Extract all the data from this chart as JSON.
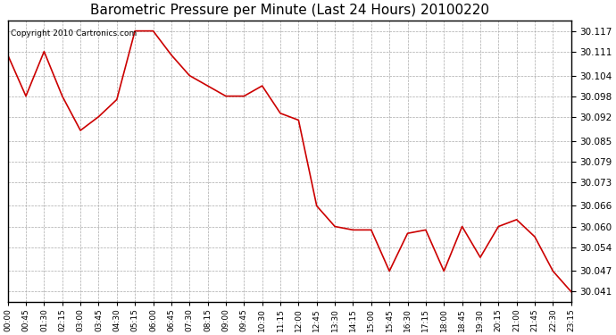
{
  "title": "Barometric Pressure per Minute (Last 24 Hours) 20100220",
  "copyright": "Copyright 2010 Cartronics.com",
  "line_color": "#cc0000",
  "bg_color": "#ffffff",
  "plot_bg_color": "#ffffff",
  "grid_color": "#aaaaaa",
  "yticks": [
    30.041,
    30.047,
    30.054,
    30.06,
    30.066,
    30.073,
    30.079,
    30.085,
    30.092,
    30.098,
    30.104,
    30.111,
    30.117
  ],
  "ylim": [
    30.038,
    30.12
  ],
  "xtick_labels": [
    "00:00",
    "00:45",
    "01:30",
    "02:15",
    "03:00",
    "03:45",
    "04:30",
    "05:15",
    "06:00",
    "06:45",
    "07:30",
    "08:15",
    "09:00",
    "09:45",
    "10:30",
    "11:15",
    "12:00",
    "12:45",
    "13:30",
    "14:15",
    "15:00",
    "15:45",
    "16:30",
    "17:15",
    "18:00",
    "18:45",
    "19:30",
    "20:15",
    "21:00",
    "21:45",
    "22:30",
    "23:15"
  ],
  "x_values": [
    0,
    45,
    90,
    135,
    180,
    225,
    270,
    315,
    360,
    405,
    450,
    495,
    540,
    585,
    630,
    675,
    720,
    765,
    810,
    855,
    900,
    945,
    990,
    1035,
    1080,
    1125,
    1170,
    1215,
    1260,
    1305,
    1350,
    1395
  ],
  "y_values": [
    30.11,
    30.098,
    30.111,
    30.098,
    30.088,
    30.092,
    30.097,
    30.117,
    30.117,
    30.11,
    30.104,
    30.101,
    30.098,
    30.098,
    30.101,
    30.093,
    30.091,
    30.066,
    30.06,
    30.059,
    30.059,
    30.047,
    30.058,
    30.059,
    30.047,
    30.06,
    30.051,
    30.06,
    30.062,
    30.057,
    30.047,
    30.041
  ]
}
